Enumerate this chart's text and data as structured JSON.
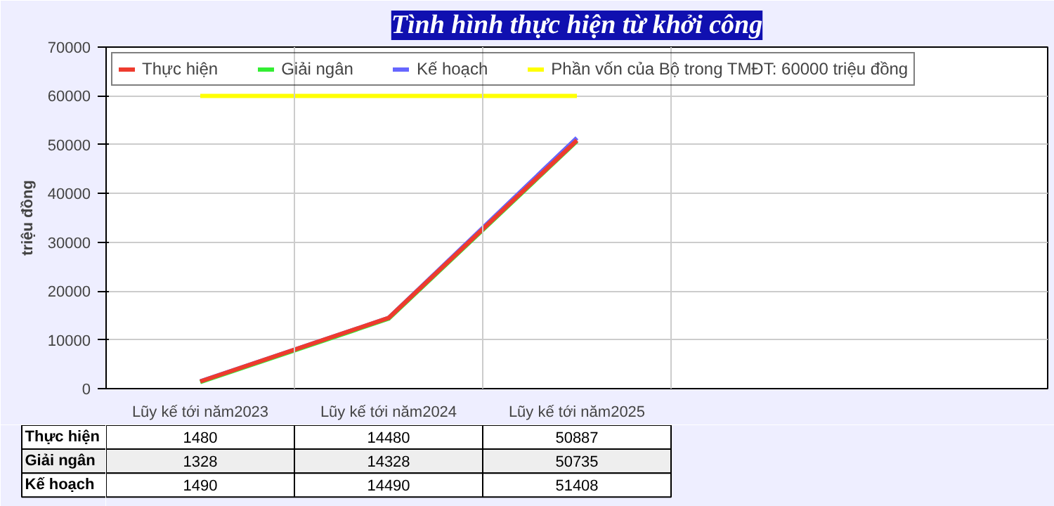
{
  "chart_data": {
    "type": "line",
    "title": "Tình hình thực hiện từ khởi công",
    "ylabel": "triệu đồng",
    "categories": [
      "Lũy kế tới năm2023",
      "Lũy kế tới năm2024",
      "Lũy kế tới năm2025",
      null,
      null
    ],
    "series": [
      {
        "name": "Thực hiện",
        "color": "#ee3b2e",
        "values": [
          1480,
          14480,
          50887,
          null,
          null
        ],
        "value_labels": [
          "1480",
          "14480",
          "50887",
          null,
          null
        ]
      },
      {
        "name": "Giải ngân",
        "color": "#33ee33",
        "values": [
          1328,
          14328,
          50735,
          null,
          null
        ],
        "value_labels": [
          "1328",
          "14328",
          "50735",
          null,
          null
        ]
      },
      {
        "name": "Kế hoạch",
        "color": "#6666ff",
        "values": [
          1490,
          14490,
          51408,
          null,
          null
        ],
        "value_labels": [
          "1490",
          "14490",
          "51408",
          null,
          null
        ]
      },
      {
        "name": "Phần vốn của Bộ trong TMĐT: 60000 triệu đồng",
        "color": "#ffff00",
        "values": [
          60000,
          60000,
          60000,
          null,
          null
        ]
      }
    ],
    "ylim": [
      0,
      70000
    ],
    "yticks": [
      0,
      10000,
      20000,
      30000,
      40000,
      50000,
      60000,
      70000
    ],
    "grid": true,
    "legend": "top left"
  }
}
